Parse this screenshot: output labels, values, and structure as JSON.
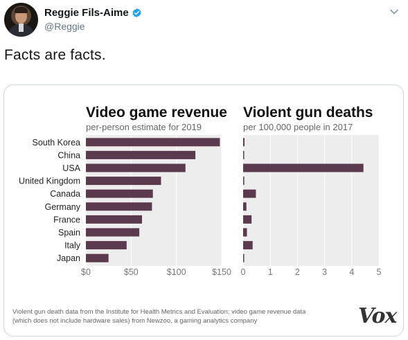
{
  "tweet": {
    "display_name": "Reggie Fils-Aime",
    "handle": "@Reggie",
    "text": "Facts are facts.",
    "verified": true,
    "verified_color": "#1da1f2",
    "icons": {
      "verified": "verified-badge-icon",
      "menu": "chevron-down-icon"
    }
  },
  "chart_data": [
    {
      "type": "bar",
      "title": "Video game revenue",
      "subtitle": "per-person estimate for 2019",
      "categories": [
        "South Korea",
        "China",
        "USA",
        "United Kingdom",
        "Canada",
        "Germany",
        "France",
        "Spain",
        "Italy",
        "Japan"
      ],
      "values": [
        148,
        121,
        110,
        83,
        74,
        73,
        62,
        59,
        45,
        25
      ],
      "xlim": [
        0,
        150
      ],
      "tick_labels": [
        "$0",
        "$50",
        "$100",
        "$150"
      ],
      "grid": true,
      "bar_color": "#5c3a4d"
    },
    {
      "type": "bar",
      "title": "Violent gun deaths",
      "subtitle": "per 100,000 people in 2017",
      "categories": [
        "South Korea",
        "China",
        "USA",
        "United Kingdom",
        "Canada",
        "Germany",
        "France",
        "Spain",
        "Italy",
        "Japan"
      ],
      "values": [
        0.05,
        0.03,
        4.43,
        0.04,
        0.47,
        0.12,
        0.31,
        0.14,
        0.35,
        0.02
      ],
      "xlim": [
        0,
        5
      ],
      "tick_labels": [
        "0",
        "1",
        "2",
        "3",
        "4",
        "5"
      ],
      "grid": true,
      "bar_color": "#5c3a4d"
    }
  ],
  "source_note": {
    "line1": "Violent gun death data from the Institute for Health Metrics and Evaluation; video game revenue data",
    "line2": "(which does not include hardware sales) from Newzoo, a gaming analytics company"
  },
  "logo": "Vox"
}
